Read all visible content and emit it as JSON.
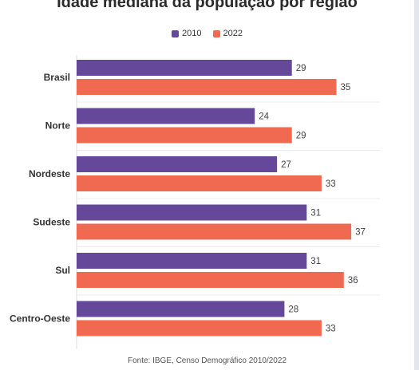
{
  "chart_data": {
    "type": "bar",
    "orientation": "horizontal",
    "title": "Idade mediana da população por região",
    "categories": [
      "Brasil",
      "Norte",
      "Nordeste",
      "Sudeste",
      "Sul",
      "Centro-Oeste"
    ],
    "series": [
      {
        "name": "2010",
        "color": "#66489a",
        "values": [
          29,
          24,
          27,
          31,
          31,
          28
        ]
      },
      {
        "name": "2022",
        "color": "#ef6a50",
        "values": [
          35,
          29,
          33,
          37,
          36,
          33
        ]
      }
    ],
    "xlim": [
      0,
      40
    ],
    "grid": false,
    "legend": "top-center",
    "source": "Fonte: IBGE, Censo Demográfico 2010/2022"
  }
}
